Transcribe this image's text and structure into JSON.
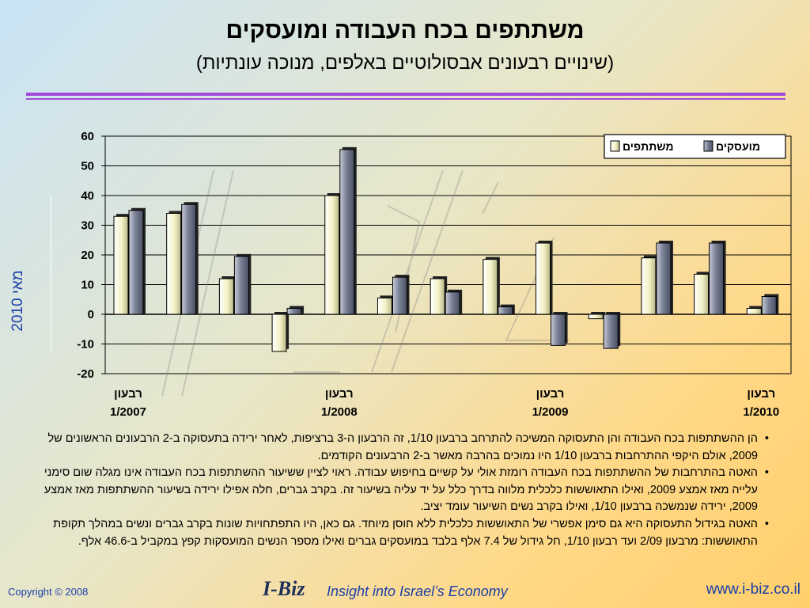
{
  "header": {
    "title": "משתתפים בכח העבודה ומועסקים",
    "subtitle": "(שינויים רבעונים אבסולוטיים באלפים, מנוכה עונתיות)"
  },
  "side_label": "מאי 2010",
  "chart_data": {
    "type": "bar",
    "title": "",
    "xlabel": "",
    "ylabel": "",
    "ylim": [
      -20,
      60
    ],
    "yticks": [
      60,
      50,
      40,
      30,
      20,
      10,
      0,
      -10,
      -20
    ],
    "grid": true,
    "legend_position": "top-right",
    "series": [
      {
        "name": "משתתפים",
        "color": "#f3f2c6",
        "values": [
          33,
          34,
          12,
          -12.5,
          40,
          5.5,
          12,
          18.5,
          24,
          -1.5,
          19,
          13.5,
          2
        ]
      },
      {
        "name": "מועסקים",
        "color": "#777e92",
        "values": [
          35,
          37,
          19.5,
          2,
          55.5,
          12.5,
          7.5,
          2.5,
          -10.5,
          -11.5,
          24,
          24,
          6
        ]
      }
    ],
    "x_labels": [
      {
        "index": 0,
        "line1": "רבעון",
        "line2": "1/2007"
      },
      {
        "index": 4,
        "line1": "רבעון",
        "line2": "1/2008"
      },
      {
        "index": 8,
        "line1": "רבעון",
        "line2": "1/2009"
      },
      {
        "index": 12,
        "line1": "רבעון",
        "line2": "1/2010"
      }
    ]
  },
  "notes": [
    "הן ההשתתפות בכח העבודה והן התעסוקה המשיכה להתרחב ברבעון 1/10, זה הרבעון ה-3 ברציפות, לאחר ירידה בתעסוקה ב-2 הרבעונים הראשונים של 2009, אולם היקפי ההתרחבות ברבעון 1/10 היו נמוכים בהרבה מאשר ב-2 הרבעונים הקודמים.",
    "האטה בהתרחבות של ההשתתפות בכח העבודה רומזת אולי על קשיים בחיפוש עבודה. ראוי לציין ששיעור ההשתתפות בכח העבודה אינו מגלה שום סימני עלייה מאז אמצע 2009, ואילו התאוששות כלכלית מלווה בדרך כלל על יד עליה בשיעור זה. בקרב גברים, חלה אפילו ירידה בשיעור ההשתתפות מאז אמצע 2009, ירידה שנמשכה ברבעון 1/10, ואילו בקרב נשים השיעור עומד יציב.",
    "האטה בגידול התעסוקה היא גם סימן אפשרי של התאוששות כלכלית ללא חוסן מיוחד. גם כאן, היו התפתחויות שונות בקרב גברים ונשים במהלך תקופת התאוששות: מרבעון 2/09 ועד רבעון 1/10, חל גידול של 7.4 אלף בלבד במועסקים גברים ואילו מספר הנשים המועסקות קפץ במקביל ב-46.6 אלף."
  ],
  "footer": {
    "copyright": "Copyright © 2008",
    "logo": "I-Biz",
    "tagline": "Insight into Israel’s Economy",
    "url": "www.i-biz.co.il"
  },
  "colors": {
    "accent_rule": "#a24ad9",
    "footer_text": "#1a3fa8",
    "bar_light": "#f3f2c6",
    "bar_dark": "#777e92"
  }
}
